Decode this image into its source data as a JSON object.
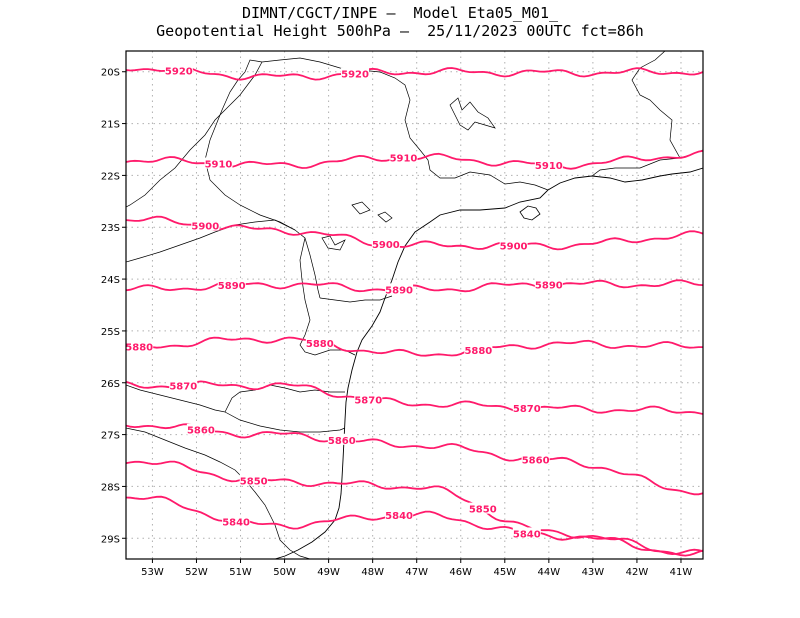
{
  "header": {
    "line1": "DIMNT/CGCT/INPE –  Model Eta05_M01_",
    "line2": "Geopotential Height 500hPa –  25/11/2023 00UTC fct=86h"
  },
  "axes": {
    "lat_labels": [
      "20S",
      "21S",
      "22S",
      "23S",
      "24S",
      "25S",
      "26S",
      "27S",
      "28S",
      "29S"
    ],
    "lon_labels": [
      "53W",
      "52W",
      "51W",
      "50W",
      "49W",
      "48W",
      "47W",
      "46W",
      "45W",
      "44W",
      "43W",
      "42W",
      "41W"
    ]
  },
  "colors": {
    "contour": "#ff1a6b",
    "frame": "#000000",
    "coast": "#000000",
    "grid": "#b0b0b0"
  },
  "contours": [
    {
      "value": 5920,
      "label": "5920",
      "lat": [
        -19.92,
        -20.1,
        -20.0,
        -20.02,
        -20.0
      ]
    },
    {
      "value": 5910,
      "label": "5910",
      "lat": [
        -21.7,
        -21.8,
        -21.65,
        -21.8,
        -21.6
      ]
    },
    {
      "value": 5900,
      "label": "5900",
      "lat": [
        -22.85,
        -23.05,
        -23.35,
        -23.35,
        -23.15
      ]
    },
    {
      "value": 5890,
      "label": "5890",
      "lat": [
        -24.2,
        -24.1,
        -24.2,
        -24.1,
        -24.1
      ]
    },
    {
      "value": 5880,
      "label": "5880",
      "lat": [
        -25.3,
        -25.15,
        -25.45,
        -25.25,
        -25.3
      ]
    },
    {
      "value": 5870,
      "label": "5870",
      "lat": [
        -26.05,
        -26.05,
        -26.4,
        -26.5,
        -26.55
      ]
    },
    {
      "value": 5860,
      "label": "5860",
      "lat": [
        -26.8,
        -27.0,
        -27.2,
        -27.5,
        -28.1
      ]
    },
    {
      "value": 5850,
      "label": "5850",
      "lat": [
        -27.5,
        -27.9,
        -28.0,
        -28.9,
        -29.3
      ]
    },
    {
      "value": 5840,
      "label": "5840",
      "lat": [
        -28.2,
        -28.75,
        -28.55,
        -28.95,
        -29.3
      ]
    }
  ]
}
